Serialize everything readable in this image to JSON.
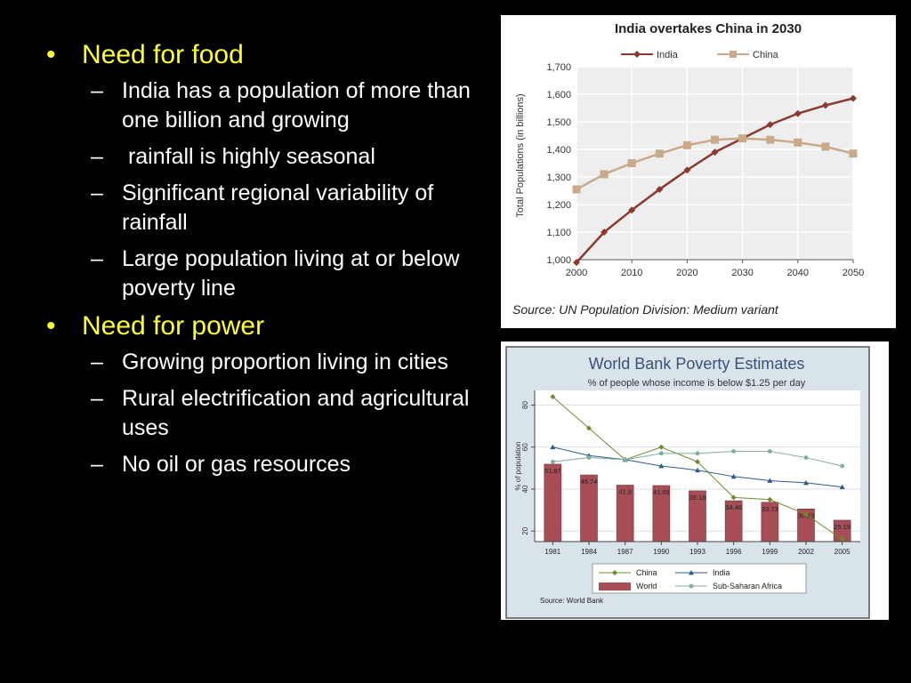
{
  "slide": {
    "bullets": [
      {
        "text": "Need for food",
        "subs": [
          "India has a population of more than one billion and growing",
          " rainfall is highly seasonal",
          "Significant regional variability of rainfall",
          "Large population living at or below poverty line"
        ]
      },
      {
        "text": "Need for power",
        "subs": [
          "Growing proportion living in cities",
          "Rural electrification and agricultural uses",
          "No oil or gas resources"
        ]
      }
    ]
  },
  "chart_data": [
    {
      "type": "line",
      "title": "India overtakes China in 2030",
      "ylabel": "Total Populations (in billions)",
      "xlabel": "",
      "source": "Source: UN Population Division: Medium variant",
      "x": [
        2000,
        2005,
        2010,
        2015,
        2020,
        2025,
        2030,
        2035,
        2040,
        2045,
        2050
      ],
      "x_ticks": [
        "2000",
        "2010",
        "2020",
        "2030",
        "2040",
        "2050"
      ],
      "y_ticks": [
        "1,000",
        "1,100",
        "1,200",
        "1,300",
        "1,400",
        "1,500",
        "1,600",
        "1,700"
      ],
      "ylim": [
        1000,
        1700
      ],
      "xlim": [
        2000,
        2050
      ],
      "grid": true,
      "legend": "top",
      "series": [
        {
          "name": "India",
          "color": "#8b3a2f",
          "marker": "diamond",
          "values": [
            990,
            1100,
            1180,
            1255,
            1325,
            1390,
            1440,
            1490,
            1530,
            1560,
            1585
          ]
        },
        {
          "name": "China",
          "color": "#c8aa8a",
          "marker": "square",
          "values": [
            1255,
            1310,
            1350,
            1385,
            1415,
            1435,
            1440,
            1435,
            1425,
            1410,
            1385
          ]
        }
      ]
    },
    {
      "type": "bar",
      "title": "World Bank Poverty Estimates",
      "subtitle": "% of people whose income is below $1.25 per day",
      "ylabel": "% of population",
      "xlabel": "",
      "source": "Source: World Bank",
      "categories": [
        "1981",
        "1984",
        "1987",
        "1990",
        "1993",
        "1996",
        "1999",
        "2002",
        "2005"
      ],
      "y_ticks": [
        "20",
        "40",
        "60",
        "80"
      ],
      "ylim": [
        15,
        87
      ],
      "grid": true,
      "legend": "bottom",
      "bars": {
        "name": "World",
        "color": "#a64d55",
        "values": [
          51.87,
          46.74,
          41.9,
          41.69,
          39.18,
          34.46,
          33.73,
          30.53,
          25.19
        ],
        "labels": [
          "51.87",
          "46.74",
          "41.9",
          "41.69",
          "39.18",
          "34.46",
          "33.73",
          "30.53",
          "25.19"
        ]
      },
      "lines": [
        {
          "name": "China",
          "color": "#6e8b2e",
          "marker": "diamond",
          "values": [
            84,
            69,
            54,
            60,
            53,
            36,
            35,
            28,
            16
          ]
        },
        {
          "name": "India",
          "color": "#2e5a8a",
          "marker": "triangle",
          "values": [
            60,
            56,
            54,
            51,
            49,
            46,
            44,
            43,
            41
          ]
        },
        {
          "name": "Sub-Saharan Africa",
          "color": "#7fae9e",
          "marker": "circle",
          "values": [
            53,
            55,
            54,
            57,
            57,
            58,
            58,
            55,
            51
          ]
        }
      ]
    }
  ]
}
